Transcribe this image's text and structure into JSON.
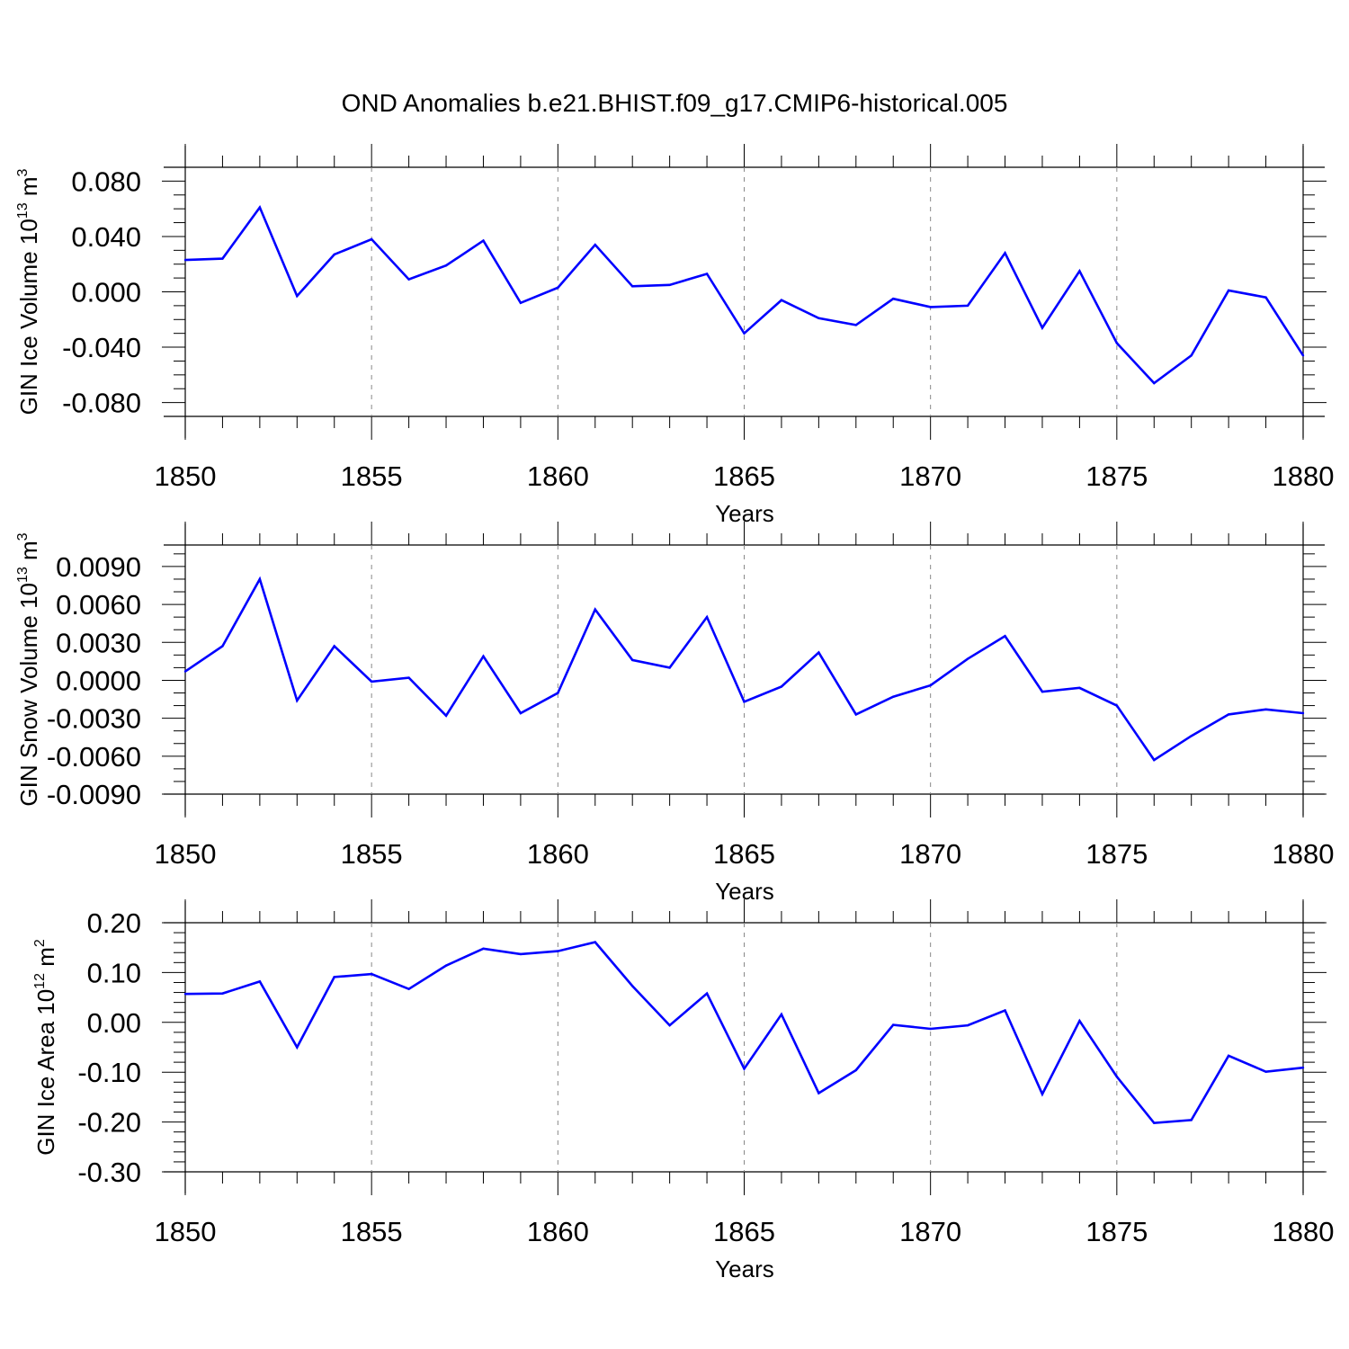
{
  "title": "OND Anomalies b.e21.BHIST.f09_g17.CMIP6-historical.005",
  "colors": {
    "series": "#0000ff",
    "axis": "#000000",
    "grid": "#888888"
  },
  "chart_data": [
    {
      "type": "line",
      "title": "OND Anomalies b.e21.BHIST.f09_g17.CMIP6-historical.005",
      "xlabel": "Years",
      "ylabel": {
        "text": "GIN Ice Volume 10",
        "sup": "13",
        "unit": " m",
        "unit_sup": "3"
      },
      "xlim": [
        1850,
        1880
      ],
      "ylim": [
        -0.09,
        0.09
      ],
      "xticks": [
        "1850",
        "1855",
        "1860",
        "1865",
        "1870",
        "1875",
        "1880"
      ],
      "yticks": [
        "0.080",
        "0.040",
        "0.000",
        "-0.040",
        "-0.080"
      ],
      "ytick_values": [
        0.08,
        0.04,
        0.0,
        -0.04,
        -0.08
      ],
      "yminor_step": 0.01,
      "grid": "vertical dashed at major x ticks",
      "series": [
        {
          "name": "GIN Ice Volume",
          "x": [
            1850,
            1851,
            1852,
            1853,
            1854,
            1855,
            1856,
            1857,
            1858,
            1859,
            1860,
            1861,
            1862,
            1863,
            1864,
            1865,
            1866,
            1867,
            1868,
            1869,
            1870,
            1871,
            1872,
            1873,
            1874,
            1875,
            1876,
            1877,
            1878,
            1879,
            1880
          ],
          "values": [
            0.023,
            0.024,
            0.061,
            -0.003,
            0.027,
            0.038,
            0.009,
            0.019,
            0.037,
            -0.008,
            0.003,
            0.034,
            0.004,
            0.005,
            0.013,
            -0.03,
            -0.006,
            -0.019,
            -0.024,
            -0.005,
            -0.011,
            -0.01,
            0.028,
            -0.026,
            0.015,
            -0.037,
            -0.066,
            -0.046,
            0.001,
            -0.004,
            -0.046
          ]
        }
      ]
    },
    {
      "type": "line",
      "xlabel": "Years",
      "ylabel": {
        "text": "GIN Snow Volume 10",
        "sup": "13",
        "unit": " m",
        "unit_sup": "3"
      },
      "xlim": [
        1850,
        1880
      ],
      "ylim": [
        -0.009,
        0.0107
      ],
      "xticks": [
        "1850",
        "1855",
        "1860",
        "1865",
        "1870",
        "1875",
        "1880"
      ],
      "yticks": [
        "0.0090",
        "0.0060",
        "0.0030",
        "0.0000",
        "-0.0030",
        "-0.0060",
        "-0.0090"
      ],
      "ytick_values": [
        0.009,
        0.006,
        0.003,
        0.0,
        -0.003,
        -0.006,
        -0.009
      ],
      "yminor_step": 0.001,
      "grid": "vertical dashed at major x ticks",
      "series": [
        {
          "name": "GIN Snow Volume",
          "x": [
            1850,
            1851,
            1852,
            1853,
            1854,
            1855,
            1856,
            1857,
            1858,
            1859,
            1860,
            1861,
            1862,
            1863,
            1864,
            1865,
            1866,
            1867,
            1868,
            1869,
            1870,
            1871,
            1872,
            1873,
            1874,
            1875,
            1876,
            1877,
            1878,
            1879,
            1880
          ],
          "values": [
            0.0007,
            0.0027,
            0.008,
            -0.0016,
            0.0027,
            -0.0001,
            0.0002,
            -0.0028,
            0.0019,
            -0.0026,
            -0.001,
            0.0056,
            0.0016,
            0.001,
            0.005,
            -0.0017,
            -0.0005,
            0.0022,
            -0.0027,
            -0.0013,
            -0.0004,
            0.0017,
            0.0035,
            -0.0009,
            -0.0006,
            -0.002,
            -0.0063,
            -0.0044,
            -0.0027,
            -0.0023,
            -0.0026
          ]
        }
      ]
    },
    {
      "type": "line",
      "xlabel": "Years",
      "ylabel": {
        "text": "GIN Ice Area 10",
        "sup": "12",
        "unit": " m",
        "unit_sup": "2"
      },
      "xlim": [
        1850,
        1880
      ],
      "ylim": [
        -0.3,
        0.2
      ],
      "xticks": [
        "1850",
        "1855",
        "1860",
        "1865",
        "1870",
        "1875",
        "1880"
      ],
      "yticks": [
        "0.20",
        "0.10",
        "0.00",
        "-0.10",
        "-0.20",
        "-0.30"
      ],
      "ytick_values": [
        0.2,
        0.1,
        0.0,
        -0.1,
        -0.2,
        -0.3
      ],
      "yminor_step": 0.02,
      "grid": "vertical dashed at major x ticks",
      "series": [
        {
          "name": "GIN Ice Area",
          "x": [
            1850,
            1851,
            1852,
            1853,
            1854,
            1855,
            1856,
            1857,
            1858,
            1859,
            1860,
            1861,
            1862,
            1863,
            1864,
            1865,
            1866,
            1867,
            1868,
            1869,
            1870,
            1871,
            1872,
            1873,
            1874,
            1875,
            1876,
            1877,
            1878,
            1879,
            1880
          ],
          "values": [
            0.057,
            0.058,
            0.082,
            -0.05,
            0.091,
            0.097,
            0.067,
            0.114,
            0.148,
            0.137,
            0.143,
            0.161,
            0.073,
            -0.006,
            0.058,
            -0.093,
            0.016,
            -0.142,
            -0.096,
            -0.005,
            -0.013,
            -0.006,
            0.024,
            -0.144,
            0.003,
            -0.109,
            -0.202,
            -0.196,
            -0.067,
            -0.099,
            -0.091
          ]
        }
      ]
    }
  ]
}
